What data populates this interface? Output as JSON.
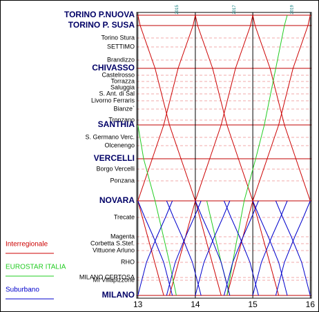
{
  "chart_data": {
    "type": "line",
    "xlim": [
      12.98,
      16.02
    ],
    "xticks": [
      13,
      14,
      15,
      16
    ],
    "ylim": [
      0,
      406
    ],
    "y_inverted": true,
    "yticks": [
      {
        "value": 0,
        "label": "TORINO P.NUOVA"
      },
      {
        "value": 15,
        "label": "TORINO P. SUSA"
      },
      {
        "value": 33,
        "label": "Torino Stura"
      },
      {
        "value": 46,
        "label": "SETTIMO"
      },
      {
        "value": 65,
        "label": "Brandizzo"
      },
      {
        "value": 77,
        "label": "CHIVASSO"
      },
      {
        "value": 87,
        "label": "Castelrosso"
      },
      {
        "value": 96,
        "label": "Torrazza"
      },
      {
        "value": 105,
        "label": "Saluggia"
      },
      {
        "value": 114,
        "label": "S. Ant. di Sal"
      },
      {
        "value": 124,
        "label": "Livorno Ferraris"
      },
      {
        "value": 136,
        "label": "Bianze`"
      },
      {
        "value": 152,
        "label": "Tronzano"
      },
      {
        "value": 159,
        "label": "SANTHIA"
      },
      {
        "value": 177,
        "label": "S. Germano Verc."
      },
      {
        "value": 189,
        "label": "Olcenengo"
      },
      {
        "value": 208,
        "label": "VERCELLI"
      },
      {
        "value": 223,
        "label": "Borgo Vercelli"
      },
      {
        "value": 240,
        "label": "Ponzana"
      },
      {
        "value": 269,
        "label": "NOVARA"
      },
      {
        "value": 293,
        "label": "Trecate"
      },
      {
        "value": 321,
        "label": "Magenta"
      },
      {
        "value": 331,
        "label": "Corbetta S.Stef."
      },
      {
        "value": 341,
        "label": "Vittuone Arluno"
      },
      {
        "value": 358,
        "label": "RHO"
      },
      {
        "value": 380,
        "label": "MILANO CERTOSA"
      },
      {
        "value": 384,
        "label": "MI Villapizzone"
      },
      {
        "value": 406,
        "label": "MILANO"
      }
    ],
    "major": [
      true,
      true,
      false,
      false,
      false,
      true,
      false,
      false,
      false,
      false,
      false,
      false,
      false,
      true,
      false,
      false,
      true,
      false,
      false,
      true,
      false,
      false,
      false,
      false,
      false,
      false,
      false,
      true
    ],
    "annotations": [
      {
        "text": "2015",
        "x": 13.68
      },
      {
        "text": "2017",
        "x": 14.68
      },
      {
        "text": "2019",
        "x": 15.68
      }
    ],
    "series": [
      {
        "name": "Interregionale",
        "color": "#cc0000",
        "trains": [
          {
            "x": [
              13.0,
              13.45
            ],
            "y": [
              269,
              406
            ]
          },
          {
            "x": [
              13.0,
              13.04,
              13.3,
              13.55,
              13.75,
              14.0,
              14.45
            ],
            "y": [
              0,
              15,
              77,
              159,
              208,
              269,
              406
            ]
          },
          {
            "x": [
              14.0,
              14.04,
              14.3,
              14.55,
              14.75,
              15.0,
              15.45
            ],
            "y": [
              0,
              15,
              77,
              159,
              208,
              269,
              406
            ]
          },
          {
            "x": [
              15.0,
              15.04,
              15.3,
              15.55,
              15.75,
              16.0
            ],
            "y": [
              0,
              15,
              77,
              159,
              208,
              269
            ]
          },
          {
            "x": [
              13.0,
              13.25,
              13.45,
              13.7,
              13.96,
              14.0
            ],
            "y": [
              269,
              208,
              159,
              77,
              15,
              0
            ]
          },
          {
            "x": [
              13.55,
              14.0,
              14.25,
              14.45,
              14.7,
              14.96,
              15.0
            ],
            "y": [
              406,
              269,
              208,
              159,
              77,
              15,
              0
            ]
          },
          {
            "x": [
              14.55,
              15.0,
              15.25,
              15.45,
              15.7,
              15.96,
              16.0
            ],
            "y": [
              406,
              269,
              208,
              159,
              77,
              15,
              0
            ]
          }
        ]
      },
      {
        "name": "EUROSTAR ITALIA",
        "color": "#22cc22",
        "trains": [
          {
            "x": [
              13.0,
              13.1,
              13.3,
              13.55,
              13.67
            ],
            "y": [
              159,
              208,
              269,
              358,
              406
            ]
          },
          {
            "x": [
              14.2,
              14.45,
              14.6
            ],
            "y": [
              269,
              358,
              406
            ]
          },
          {
            "x": [
              14.55,
              14.65,
              14.85,
              15.05,
              15.2,
              15.4,
              15.55,
              15.6
            ],
            "y": [
              406,
              358,
              269,
              208,
              159,
              77,
              15,
              0
            ]
          }
        ]
      },
      {
        "name": "Suburbano",
        "color": "#0000cc",
        "trains": [
          {
            "x": [
              13.0,
              13.12,
              13.27,
              13.45,
              13.6
            ],
            "y": [
              269,
              293,
              321,
              358,
              406
            ]
          },
          {
            "x": [
              13.5,
              13.62,
              13.77,
              13.95,
              14.1
            ],
            "y": [
              269,
              293,
              321,
              358,
              406
            ]
          },
          {
            "x": [
              14.0,
              14.12,
              14.27,
              14.45,
              14.6
            ],
            "y": [
              269,
              293,
              321,
              358,
              406
            ]
          },
          {
            "x": [
              14.5,
              14.62,
              14.77,
              14.95,
              15.1
            ],
            "y": [
              269,
              293,
              321,
              358,
              406
            ]
          },
          {
            "x": [
              15.0,
              15.12,
              15.27,
              15.45,
              15.6
            ],
            "y": [
              269,
              293,
              321,
              358,
              406
            ]
          },
          {
            "x": [
              15.4,
              15.52,
              15.67,
              15.85,
              16.0
            ],
            "y": [
              269,
              293,
              321,
              358,
              406
            ]
          },
          {
            "x": [
              13.0,
              13.15,
              13.33,
              13.48,
              13.6
            ],
            "y": [
              406,
              358,
              321,
              293,
              269
            ]
          },
          {
            "x": [
              13.5,
              13.65,
              13.83,
              13.98,
              14.1
            ],
            "y": [
              406,
              358,
              321,
              293,
              269
            ]
          },
          {
            "x": [
              14.0,
              14.15,
              14.33,
              14.48,
              14.6
            ],
            "y": [
              406,
              358,
              321,
              293,
              269
            ]
          },
          {
            "x": [
              14.5,
              14.65,
              14.83,
              14.98,
              15.1
            ],
            "y": [
              406,
              358,
              321,
              293,
              269
            ]
          },
          {
            "x": [
              15.0,
              15.15,
              15.33,
              15.48,
              15.6
            ],
            "y": [
              406,
              358,
              321,
              293,
              269
            ]
          },
          {
            "x": [
              15.4,
              15.55,
              15.73,
              15.88,
              16.0
            ],
            "y": [
              406,
              358,
              321,
              293,
              269
            ]
          }
        ]
      }
    ]
  }
}
